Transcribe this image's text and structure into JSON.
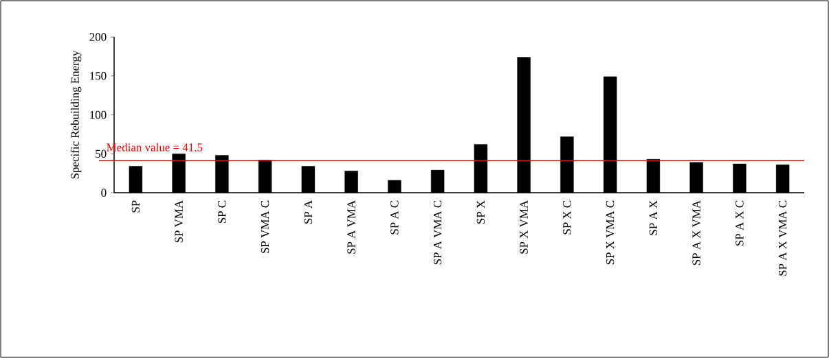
{
  "chart_data": {
    "type": "bar",
    "ylabel": "Specific Rebuilding Energy",
    "categories": [
      "SP",
      "SP VMA",
      "SP C",
      "SP VMA C",
      "SP A",
      "SP A VMA",
      "SP A C",
      "SP A VMA C",
      "SP X",
      "SP X VMA",
      "SP X C",
      "SP X VMA C",
      "SP A X",
      "SP A X VMA",
      "SP A X C",
      "SP A X VMA C"
    ],
    "values": [
      34,
      50,
      48,
      42,
      34,
      28,
      16,
      29,
      62,
      174,
      72,
      149,
      43,
      39,
      37,
      36
    ],
    "color": "#000000",
    "ylim": [
      0,
      200
    ],
    "yticks": [
      0,
      50,
      100,
      150,
      200
    ],
    "ref_lines": [
      {
        "axis": "y",
        "value": 41.5,
        "label": "Median value = 41.5",
        "color": "#ff0000"
      }
    ]
  }
}
